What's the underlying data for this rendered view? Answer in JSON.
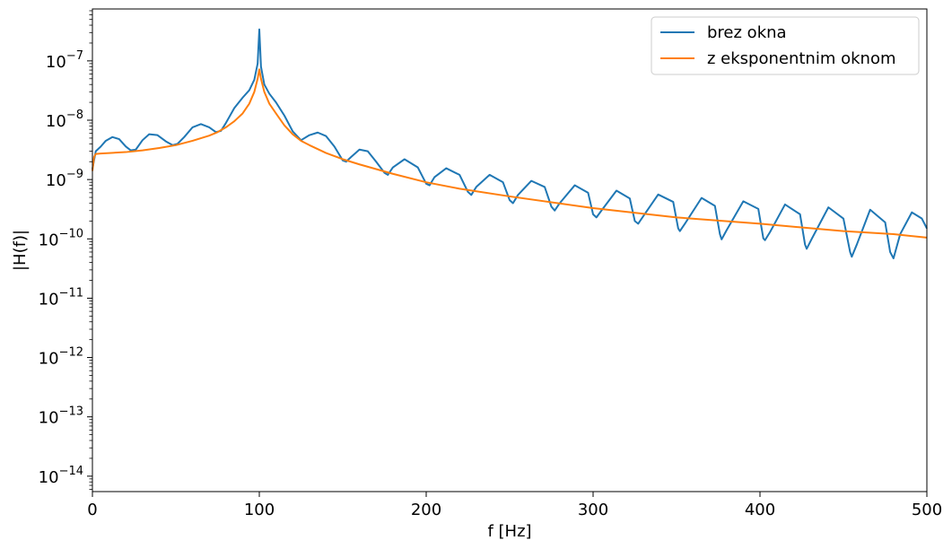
{
  "chart_data": {
    "type": "line",
    "xlabel": "f [Hz]",
    "ylabel": "|H(f)|",
    "xlim": [
      0,
      500
    ],
    "ylim": [
      5.5e-15,
      7.5e-07
    ],
    "yscale": "log",
    "legend_position": "top-right",
    "x_ticks": [
      {
        "value": 0,
        "label": "0"
      },
      {
        "value": 100,
        "label": "100"
      },
      {
        "value": 200,
        "label": "200"
      },
      {
        "value": 300,
        "label": "300"
      },
      {
        "value": 400,
        "label": "400"
      },
      {
        "value": 500,
        "label": "500"
      }
    ],
    "y_ticks": [
      {
        "exp": -14,
        "base": "10",
        "power": "−14"
      },
      {
        "exp": -13,
        "base": "10",
        "power": "−13"
      },
      {
        "exp": -12,
        "base": "10",
        "power": "−12"
      },
      {
        "exp": -11,
        "base": "10",
        "power": "−11"
      },
      {
        "exp": -10,
        "base": "10",
        "power": "−10"
      },
      {
        "exp": -9,
        "base": "10",
        "power": "−9"
      },
      {
        "exp": -8,
        "base": "10",
        "power": "−8"
      },
      {
        "exp": -7,
        "base": "10",
        "power": "−7"
      }
    ],
    "series": [
      {
        "name": "brez okna",
        "color": "#1f77b4",
        "x": [
          0,
          2,
          5,
          8,
          12,
          16,
          20,
          23,
          26,
          30,
          34,
          39,
          44,
          48,
          51,
          55,
          60,
          65,
          70,
          74,
          77,
          80,
          85,
          90,
          94,
          97,
          99,
          100,
          101,
          103,
          106,
          110,
          115,
          120,
          125,
          130,
          135,
          140,
          145,
          150,
          152,
          155,
          160,
          165,
          170,
          175,
          177,
          180,
          187,
          195,
          200,
          202,
          205,
          212,
          220,
          225,
          227,
          230,
          238,
          246,
          250,
          252,
          255,
          263,
          271,
          275,
          277,
          280,
          289,
          297,
          300,
          302,
          305,
          314,
          322,
          325,
          327,
          330,
          339,
          348,
          351,
          352,
          355,
          365,
          373,
          376,
          377,
          380,
          390,
          399,
          402,
          403,
          406,
          415,
          424,
          427,
          428,
          431,
          441,
          450,
          454,
          455,
          458,
          466,
          475,
          478,
          480,
          484,
          491,
          497,
          500
        ],
        "y": [
          1.5e-09,
          3e-09,
          3.6e-09,
          4.5e-09,
          5.2e-09,
          4.8e-09,
          3.6e-09,
          3.1e-09,
          3.2e-09,
          4.6e-09,
          5.8e-09,
          5.6e-09,
          4.4e-09,
          3.8e-09,
          4e-09,
          5.2e-09,
          7.6e-09,
          8.6e-09,
          7.6e-09,
          6.3e-09,
          6.6e-09,
          9e-09,
          1.6e-08,
          2.4e-08,
          3.2e-08,
          4.8e-08,
          9e-08,
          3.4e-07,
          8e-08,
          4e-08,
          2.8e-08,
          2e-08,
          1.2e-08,
          6.5e-09,
          4.6e-09,
          5.6e-09,
          6.2e-09,
          5.4e-09,
          3.6e-09,
          2.1e-09,
          2e-09,
          2.4e-09,
          3.2e-09,
          3e-09,
          2e-09,
          1.3e-09,
          1.2e-09,
          1.6e-09,
          2.2e-09,
          1.6e-09,
          8.5e-10,
          8e-10,
          1.1e-09,
          1.55e-09,
          1.2e-09,
          6.2e-10,
          5.5e-10,
          7.5e-10,
          1.2e-09,
          9e-10,
          4.5e-10,
          4e-10,
          5.5e-10,
          9.5e-10,
          7.5e-10,
          3.5e-10,
          3e-10,
          4e-10,
          8e-10,
          6e-10,
          2.6e-10,
          2.3e-10,
          3e-10,
          6.5e-10,
          4.8e-10,
          2e-10,
          1.8e-10,
          2.4e-10,
          5.6e-10,
          4.2e-10,
          1.5e-10,
          1.35e-10,
          1.8e-10,
          4.9e-10,
          3.6e-10,
          1.2e-10,
          9.8e-11,
          1.4e-10,
          4.3e-10,
          3.2e-10,
          1.02e-10,
          9.5e-11,
          1.3e-10,
          3.8e-10,
          2.6e-10,
          8e-11,
          6.8e-11,
          1e-10,
          3.4e-10,
          2.2e-10,
          6e-11,
          5e-11,
          8e-11,
          3.1e-10,
          1.9e-10,
          6e-11,
          4.7e-11,
          1.2e-10,
          2.8e-10,
          2.2e-10,
          1.5e-10
        ]
      },
      {
        "name": "z eksponentnim oknom",
        "color": "#ff7f0e",
        "x": [
          0,
          1,
          2,
          5,
          10,
          20,
          30,
          40,
          50,
          60,
          70,
          75,
          80,
          85,
          90,
          94,
          97,
          99,
          100,
          101,
          103,
          106,
          110,
          115,
          120,
          125,
          130,
          140,
          150,
          160,
          170,
          180,
          200,
          220,
          250,
          300,
          350,
          400,
          450,
          480,
          500
        ],
        "y": [
          1.4e-09,
          2.4e-09,
          2.7e-09,
          2.75e-09,
          2.8e-09,
          2.9e-09,
          3.1e-09,
          3.4e-09,
          3.8e-09,
          4.5e-09,
          5.5e-09,
          6.3e-09,
          7.6e-09,
          9.6e-09,
          1.3e-08,
          1.9e-08,
          3e-08,
          5e-08,
          7.2e-08,
          5e-08,
          3e-08,
          1.9e-08,
          1.3e-08,
          8.2e-09,
          5.8e-09,
          4.5e-09,
          3.8e-09,
          2.8e-09,
          2.2e-09,
          1.8e-09,
          1.5e-09,
          1.25e-09,
          9e-10,
          7e-10,
          5.2e-10,
          3.3e-10,
          2.3e-10,
          1.8e-10,
          1.35e-10,
          1.2e-10,
          1.05e-10
        ]
      }
    ]
  }
}
